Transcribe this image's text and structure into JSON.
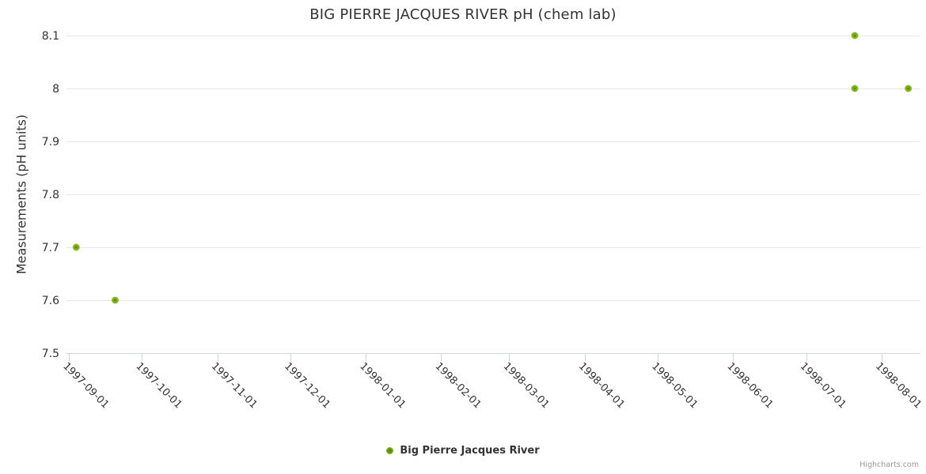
{
  "chart_data": {
    "type": "scatter",
    "title": "BIG PIERRE JACQUES RIVER pH (chem lab)",
    "xlabel": "",
    "ylabel": "Measurements (pH units)",
    "ylim": [
      7.5,
      8.1
    ],
    "y_ticks": [
      7.5,
      7.6,
      7.7,
      7.8,
      7.9,
      8,
      8.1
    ],
    "y_tick_labels": [
      "7.5",
      "7.6",
      "7.7",
      "7.8",
      "7.9",
      "8",
      "8.1"
    ],
    "x_ticks": [
      "1997-09-01",
      "1997-10-01",
      "1997-11-01",
      "1997-12-01",
      "1998-01-01",
      "1998-02-01",
      "1998-03-01",
      "1998-04-01",
      "1998-05-01",
      "1998-06-01",
      "1998-07-01",
      "1998-08-01"
    ],
    "x_range": [
      "1997-08-31",
      "1998-08-17"
    ],
    "grid": "horizontal-only",
    "legend_position": "bottom-center",
    "x_label_rotation": 45,
    "series": [
      {
        "name": "Big Pierre Jacques River",
        "marker": "circle",
        "points": [
          {
            "date": "1997-09-04",
            "value": 7.7
          },
          {
            "date": "1997-09-20",
            "value": 7.6
          },
          {
            "date": "1998-07-21",
            "value": 8.1
          },
          {
            "date": "1998-07-21",
            "value": 8.0
          },
          {
            "date": "1998-08-12",
            "value": 8.0
          }
        ]
      }
    ]
  },
  "credit": "Highcharts.com",
  "colors": {
    "title_text": "#333333",
    "label_text": "#333333",
    "grid_line": "#e6e6e6",
    "axis_line": "#ccd6eb",
    "credit_text": "#999999",
    "marker_center": "#557d0a",
    "marker_mid": "#78a713",
    "marker_edge": "#8cbe28"
  }
}
